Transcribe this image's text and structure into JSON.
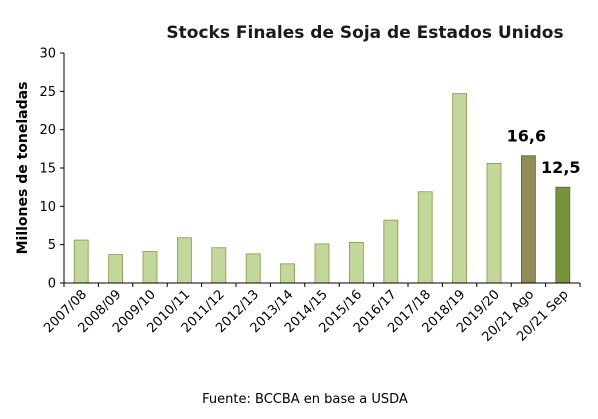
{
  "chart_data": {
    "type": "bar",
    "title": "Stocks Finales de Soja de Estados Unidos",
    "ylabel": "Millones de toneladas",
    "xlabel": "",
    "ylim": [
      0,
      30
    ],
    "yticks": [
      0,
      5,
      10,
      15,
      20,
      25,
      30
    ],
    "grid": false,
    "legend": "none",
    "categories": [
      "2007/08",
      "2008/09",
      "2009/10",
      "2010/11",
      "2011/12",
      "2012/13",
      "2013/14",
      "2014/15",
      "2015/16",
      "2016/17",
      "2017/18",
      "2018/19",
      "2019/20",
      "20/21 Ago",
      "20/21 Sep"
    ],
    "values": [
      5.6,
      3.7,
      4.1,
      5.9,
      4.6,
      3.8,
      2.5,
      5.1,
      5.3,
      8.2,
      11.9,
      24.7,
      15.6,
      16.6,
      12.5
    ],
    "data_labels": [
      "",
      "",
      "",
      "",
      "",
      "",
      "",
      "",
      "",
      "",
      "",
      "",
      "",
      "16,6",
      "12,5"
    ],
    "colors": {
      "default": "#c4d79b",
      "default_stroke": "#7f9a48",
      "highlights": {
        "20/21 Ago": "#948a54",
        "20/21 Sep": "#77933c"
      },
      "highlight_stroke": "#5a6b2a"
    },
    "source": "Fuente: BCCBA en base a USDA"
  }
}
